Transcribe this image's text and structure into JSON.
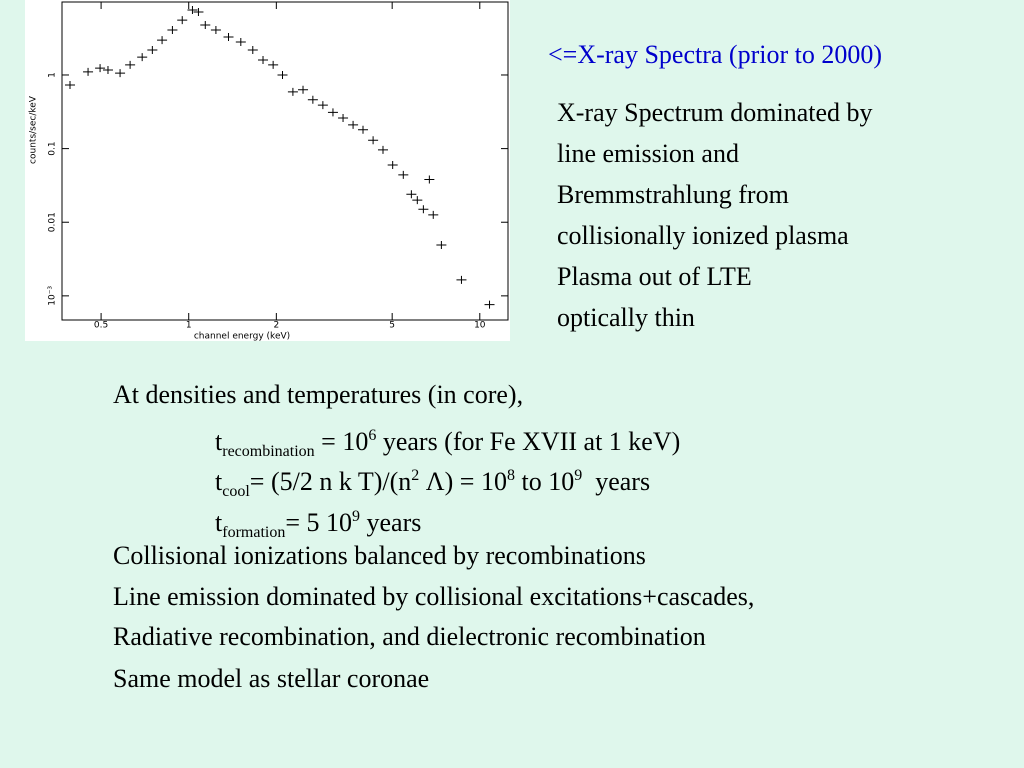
{
  "slide": {
    "caption": "<=X-ray Spectra (prior to 2000)",
    "side_lines": [
      "X-ray Spectrum dominated by",
      "line emission and",
      "Bremmstrahlung from",
      "collisionally ionized plasma",
      "Plasma out of LTE",
      "optically thin"
    ],
    "lines": [
      {
        "runs": [
          "At densities and temperatures (in core),"
        ]
      },
      {
        "indent": true,
        "runs": [
          "t",
          {
            "sub": "recombination"
          },
          " = 10",
          {
            "sup": "6"
          },
          " years (for Fe XVII at 1 keV)"
        ]
      },
      {
        "indent": true,
        "runs": [
          "t",
          {
            "sub": "cool"
          },
          "= (5/2 n k T)/(n",
          {
            "sup": "2"
          },
          " Λ) = 10",
          {
            "sup": "8"
          },
          " to 10",
          {
            "sup": "9"
          },
          "  years"
        ]
      },
      {
        "indent": true,
        "runs": [
          "t",
          {
            "sub": "formation"
          },
          "= 5 10",
          {
            "sup": "9"
          },
          " years"
        ]
      },
      {
        "runs": [
          "Collisional ionizations balanced by recombinations"
        ]
      },
      {
        "runs": [
          "Line emission dominated by collisional excitations+cascades,"
        ]
      },
      {
        "runs": [
          "Radiative recombination, and dielectronic recombination"
        ]
      },
      {
        "runs": [
          "Same model as stellar coronae"
        ]
      }
    ]
  },
  "chart_data": {
    "type": "scatter",
    "xlabel": "channel energy (keV)",
    "ylabel": "counts/sec/keV",
    "xscale": "log",
    "yscale": "log",
    "color": "#000000",
    "xlim": [
      0.367,
      12.5
    ],
    "ylim": [
      0.00047,
      9.8
    ],
    "xticks": [
      0.5,
      1,
      2,
      5,
      10
    ],
    "yticks": [
      {
        "value": 0.001,
        "label": "10⁻³"
      },
      0.01,
      0.1,
      1
    ],
    "x": [
      0.391,
      0.451,
      0.496,
      0.528,
      0.581,
      0.629,
      0.692,
      0.75,
      0.81,
      0.879,
      0.95,
      1.03,
      1.08,
      1.14,
      1.24,
      1.37,
      1.51,
      1.66,
      1.8,
      1.95,
      2.1,
      2.28,
      2.47,
      2.67,
      2.89,
      3.13,
      3.39,
      3.67,
      3.97,
      4.3,
      4.65,
      5.02,
      5.46,
      5.82,
      6.1,
      6.4,
      6.71,
      6.92,
      7.38,
      8.65,
      10.8
    ],
    "y": [
      0.73,
      1.1,
      1.24,
      1.17,
      1.06,
      1.37,
      1.75,
      2.18,
      2.98,
      4.08,
      5.57,
      7.62,
      7.16,
      4.77,
      4.08,
      3.28,
      2.8,
      2.18,
      1.6,
      1.37,
      1.0,
      0.59,
      0.63,
      0.46,
      0.39,
      0.31,
      0.26,
      0.21,
      0.18,
      0.13,
      0.096,
      0.06,
      0.044,
      0.024,
      0.02,
      0.015,
      0.038,
      0.0126,
      0.0049,
      0.00165,
      0.00076
    ]
  }
}
